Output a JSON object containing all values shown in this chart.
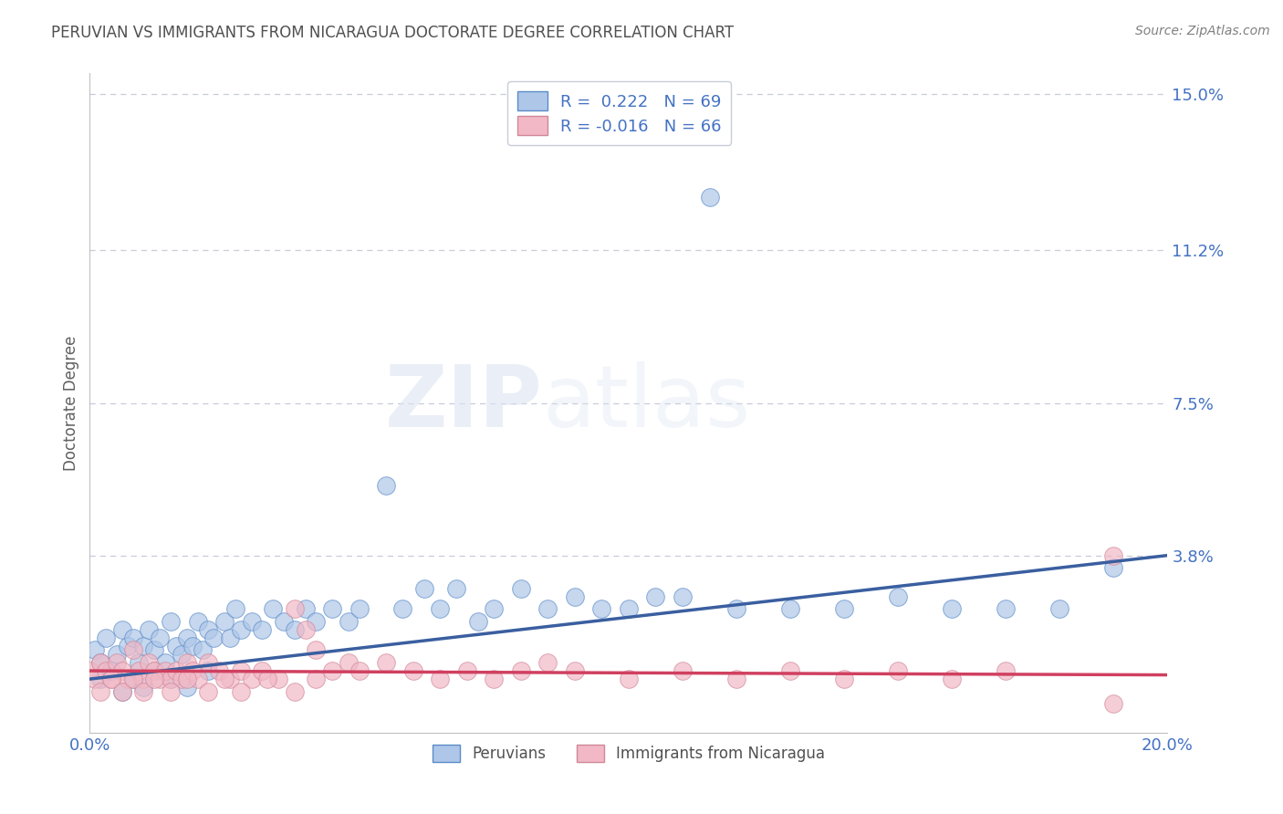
{
  "title": "PERUVIAN VS IMMIGRANTS FROM NICARAGUA DOCTORATE DEGREE CORRELATION CHART",
  "source": "Source: ZipAtlas.com",
  "ylabel": "Doctorate Degree",
  "xlim": [
    0.0,
    0.2
  ],
  "ylim": [
    -0.005,
    0.155
  ],
  "ytick_vals": [
    0.038,
    0.075,
    0.112,
    0.15
  ],
  "ytick_labels": [
    "3.8%",
    "7.5%",
    "11.2%",
    "15.0%"
  ],
  "xtick_vals": [
    0.0,
    0.2
  ],
  "xtick_labels": [
    "0.0%",
    "20.0%"
  ],
  "blue_R": 0.222,
  "blue_N": 69,
  "pink_R": -0.016,
  "pink_N": 66,
  "blue_color": "#aec6e8",
  "pink_color": "#f2b8c6",
  "blue_edge_color": "#5b8cc8",
  "pink_edge_color": "#d08898",
  "blue_line_color": "#3a5fa0",
  "pink_line_color": "#d04060",
  "legend_label_blue": "Peruvians",
  "legend_label_pink": "Immigrants from Nicaragua",
  "watermark_zip": "ZIP",
  "watermark_atlas": "atlas",
  "title_color": "#505050",
  "tick_label_color": "#4472c4",
  "grid_color": "#c8ccd8",
  "blue_line_start_y": 0.008,
  "blue_line_end_y": 0.038,
  "pink_line_start_y": 0.01,
  "pink_line_end_y": 0.009,
  "blue_scatter_x": [
    0.001,
    0.002,
    0.003,
    0.004,
    0.005,
    0.006,
    0.007,
    0.008,
    0.009,
    0.01,
    0.011,
    0.012,
    0.013,
    0.014,
    0.015,
    0.016,
    0.017,
    0.018,
    0.019,
    0.02,
    0.021,
    0.022,
    0.023,
    0.025,
    0.026,
    0.027,
    0.028,
    0.03,
    0.032,
    0.034,
    0.036,
    0.038,
    0.04,
    0.042,
    0.045,
    0.048,
    0.05,
    0.055,
    0.058,
    0.062,
    0.065,
    0.068,
    0.072,
    0.075,
    0.08,
    0.085,
    0.09,
    0.095,
    0.1,
    0.105,
    0.11,
    0.115,
    0.12,
    0.13,
    0.14,
    0.15,
    0.16,
    0.17,
    0.18,
    0.19,
    0.002,
    0.004,
    0.006,
    0.008,
    0.01,
    0.012,
    0.015,
    0.018,
    0.022
  ],
  "blue_scatter_y": [
    0.015,
    0.012,
    0.018,
    0.01,
    0.014,
    0.02,
    0.016,
    0.018,
    0.012,
    0.016,
    0.02,
    0.015,
    0.018,
    0.012,
    0.022,
    0.016,
    0.014,
    0.018,
    0.016,
    0.022,
    0.015,
    0.02,
    0.018,
    0.022,
    0.018,
    0.025,
    0.02,
    0.022,
    0.02,
    0.025,
    0.022,
    0.02,
    0.025,
    0.022,
    0.025,
    0.022,
    0.025,
    0.055,
    0.025,
    0.03,
    0.025,
    0.03,
    0.022,
    0.025,
    0.03,
    0.025,
    0.028,
    0.025,
    0.025,
    0.028,
    0.028,
    0.125,
    0.025,
    0.025,
    0.025,
    0.028,
    0.025,
    0.025,
    0.025,
    0.035,
    0.008,
    0.01,
    0.005,
    0.008,
    0.006,
    0.01,
    0.008,
    0.006,
    0.01
  ],
  "pink_scatter_x": [
    0.0,
    0.001,
    0.002,
    0.003,
    0.004,
    0.005,
    0.006,
    0.007,
    0.008,
    0.009,
    0.01,
    0.011,
    0.012,
    0.013,
    0.014,
    0.015,
    0.016,
    0.017,
    0.018,
    0.019,
    0.02,
    0.022,
    0.024,
    0.026,
    0.028,
    0.03,
    0.032,
    0.035,
    0.038,
    0.04,
    0.042,
    0.045,
    0.048,
    0.05,
    0.055,
    0.06,
    0.065,
    0.07,
    0.075,
    0.08,
    0.085,
    0.09,
    0.1,
    0.11,
    0.12,
    0.13,
    0.14,
    0.15,
    0.16,
    0.17,
    0.002,
    0.004,
    0.006,
    0.008,
    0.01,
    0.012,
    0.015,
    0.018,
    0.022,
    0.025,
    0.028,
    0.033,
    0.038,
    0.042,
    0.19,
    0.19
  ],
  "pink_scatter_y": [
    0.01,
    0.008,
    0.012,
    0.01,
    0.008,
    0.012,
    0.01,
    0.008,
    0.015,
    0.01,
    0.008,
    0.012,
    0.01,
    0.008,
    0.01,
    0.008,
    0.01,
    0.008,
    0.012,
    0.01,
    0.008,
    0.012,
    0.01,
    0.008,
    0.01,
    0.008,
    0.01,
    0.008,
    0.025,
    0.02,
    0.015,
    0.01,
    0.012,
    0.01,
    0.012,
    0.01,
    0.008,
    0.01,
    0.008,
    0.01,
    0.012,
    0.01,
    0.008,
    0.01,
    0.008,
    0.01,
    0.008,
    0.01,
    0.008,
    0.01,
    0.005,
    0.008,
    0.005,
    0.008,
    0.005,
    0.008,
    0.005,
    0.008,
    0.005,
    0.008,
    0.005,
    0.008,
    0.005,
    0.008,
    0.038,
    0.002
  ]
}
